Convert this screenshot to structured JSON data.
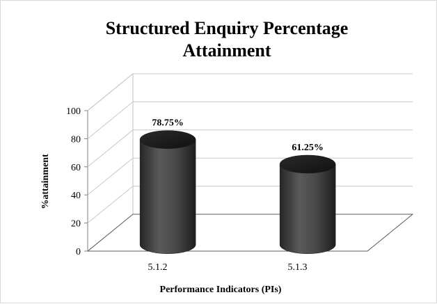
{
  "chart_data": {
    "type": "bar",
    "title_lines": [
      "Structured Enquiry Percentage",
      "Attainment"
    ],
    "categories": [
      "5.1.2",
      "5.1.3"
    ],
    "values": [
      78.75,
      61.25
    ],
    "data_labels": [
      "78.75%",
      "61.25%"
    ],
    "xlabel": "Performance Indicators (PIs)",
    "ylabel": "%attainment",
    "ylim": [
      0,
      100
    ],
    "yticks": [
      0,
      20,
      40,
      60,
      80,
      100
    ],
    "yticks_labels": [
      "0",
      "20",
      "40",
      "60",
      "80",
      "100"
    ],
    "grid": true,
    "legend": "none",
    "bar_shape": "cylinder",
    "bar_color": "#3f3f3f"
  }
}
